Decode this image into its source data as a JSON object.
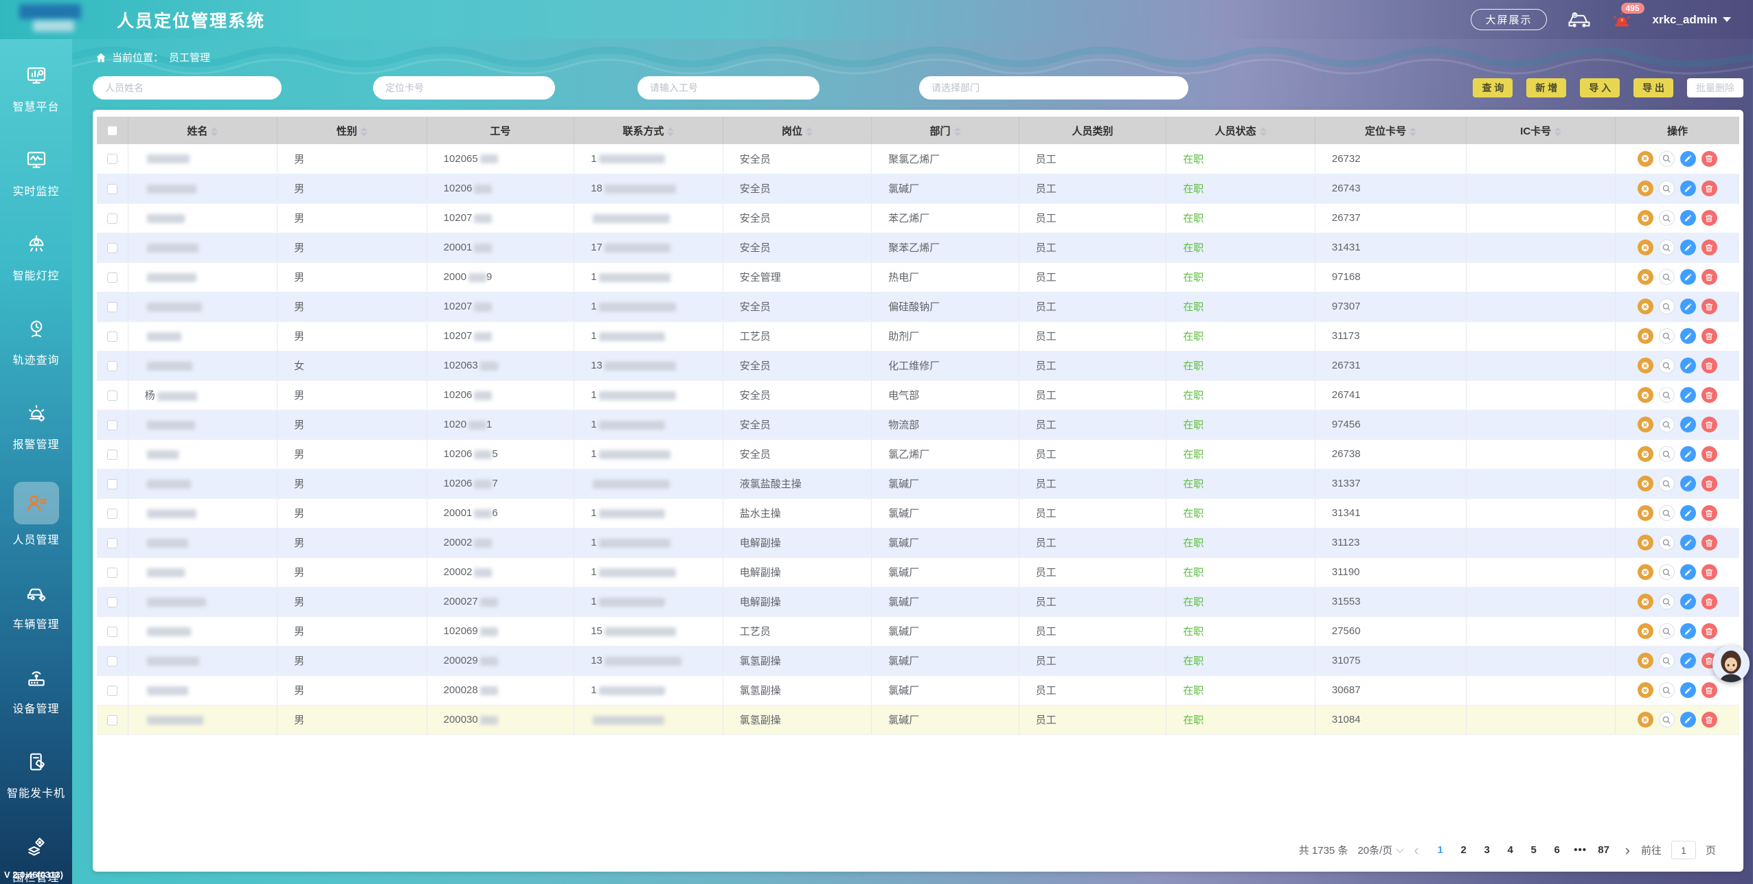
{
  "app": {
    "title": "人员定位管理系统",
    "version": "V 2.0.46(0313)",
    "header": {
      "big_screen_btn": "大屏展示",
      "alarm_badge": "495",
      "username": "xrkc_admin"
    }
  },
  "sidebar": {
    "items": [
      {
        "label": "智慧平台",
        "icon": "dashboard",
        "active": false
      },
      {
        "label": "实时监控",
        "icon": "monitor",
        "active": false
      },
      {
        "label": "智能灯控",
        "icon": "lamp",
        "active": false
      },
      {
        "label": "轨迹查询",
        "icon": "track",
        "active": false
      },
      {
        "label": "报警管理",
        "icon": "alarm",
        "active": false
      },
      {
        "label": "人员管理",
        "icon": "person",
        "active": true
      },
      {
        "label": "车辆管理",
        "icon": "vehicle",
        "active": false
      },
      {
        "label": "设备管理",
        "icon": "device",
        "active": false
      },
      {
        "label": "智能发卡机",
        "icon": "cardmachine",
        "active": false
      },
      {
        "label": "围栏管理",
        "icon": "fence",
        "active": false
      }
    ]
  },
  "breadcrumb": {
    "prefix": "当前位置：",
    "current": "员工管理"
  },
  "filters": {
    "name_placeholder": "人员姓名",
    "card_placeholder": "定位卡号",
    "jobno_placeholder": "请输入工号",
    "dept_placeholder": "请选择部门"
  },
  "toolbar": {
    "query": "查 询",
    "add": "新 增",
    "import": "导 入",
    "export": "导 出",
    "batch_delete": "批量删除"
  },
  "table": {
    "columns": [
      {
        "label": "姓名",
        "sortable": true
      },
      {
        "label": "性别",
        "sortable": true
      },
      {
        "label": "工号",
        "sortable": false
      },
      {
        "label": "联系方式",
        "sortable": true
      },
      {
        "label": "岗位",
        "sortable": true
      },
      {
        "label": "部门",
        "sortable": true
      },
      {
        "label": "人员类别",
        "sortable": false
      },
      {
        "label": "人员状态",
        "sortable": true
      },
      {
        "label": "定位卡号",
        "sortable": true
      },
      {
        "label": "IC卡号",
        "sortable": true
      },
      {
        "label": "操作",
        "sortable": false
      }
    ],
    "row_actions": [
      "unbind",
      "view",
      "edit",
      "delete"
    ],
    "rows": [
      {
        "name_prefix": "",
        "gender": "男",
        "job_prefix": "102065",
        "job_suffix": "",
        "phone_prefix": "1",
        "position": "安全员",
        "department": "聚氯乙烯厂",
        "category": "员工",
        "status": "在职",
        "card_no": "26732",
        "ic_no": "",
        "highlighted": false
      },
      {
        "name_prefix": "",
        "gender": "男",
        "job_prefix": "10206",
        "job_suffix": "",
        "phone_prefix": "18",
        "position": "安全员",
        "department": "氯碱厂",
        "category": "员工",
        "status": "在职",
        "card_no": "26743",
        "ic_no": "",
        "highlighted": false
      },
      {
        "name_prefix": "",
        "gender": "男",
        "job_prefix": "10207",
        "job_suffix": "",
        "phone_prefix": "",
        "position": "安全员",
        "department": "苯乙烯厂",
        "category": "员工",
        "status": "在职",
        "card_no": "26737",
        "ic_no": "",
        "highlighted": false
      },
      {
        "name_prefix": "",
        "gender": "男",
        "job_prefix": "20001",
        "job_suffix": "",
        "phone_prefix": "17",
        "position": "安全员",
        "department": "聚苯乙烯厂",
        "category": "员工",
        "status": "在职",
        "card_no": "31431",
        "ic_no": "",
        "highlighted": false
      },
      {
        "name_prefix": "",
        "gender": "男",
        "job_prefix": "2000",
        "job_suffix": "9",
        "phone_prefix": "1",
        "position": "安全管理",
        "department": "热电厂",
        "category": "员工",
        "status": "在职",
        "card_no": "97168",
        "ic_no": "",
        "highlighted": false
      },
      {
        "name_prefix": "",
        "gender": "男",
        "job_prefix": "10207",
        "job_suffix": "",
        "phone_prefix": "1",
        "position": "安全员",
        "department": "偏硅酸钠厂",
        "category": "员工",
        "status": "在职",
        "card_no": "97307",
        "ic_no": "",
        "highlighted": false
      },
      {
        "name_prefix": "",
        "gender": "男",
        "job_prefix": "10207",
        "job_suffix": "",
        "phone_prefix": "1",
        "position": "工艺员",
        "department": "助剂厂",
        "category": "员工",
        "status": "在职",
        "card_no": "31173",
        "ic_no": "",
        "highlighted": false
      },
      {
        "name_prefix": "",
        "gender": "女",
        "job_prefix": "102063",
        "job_suffix": "",
        "phone_prefix": "13",
        "position": "安全员",
        "department": "化工维修厂",
        "category": "员工",
        "status": "在职",
        "card_no": "26731",
        "ic_no": "",
        "highlighted": false
      },
      {
        "name_prefix": "杨",
        "gender": "男",
        "job_prefix": "10206",
        "job_suffix": "",
        "phone_prefix": "1",
        "position": "安全员",
        "department": "电气部",
        "category": "员工",
        "status": "在职",
        "card_no": "26741",
        "ic_no": "",
        "highlighted": false
      },
      {
        "name_prefix": "",
        "gender": "男",
        "job_prefix": "1020",
        "job_suffix": "1",
        "phone_prefix": "1",
        "position": "安全员",
        "department": "物流部",
        "category": "员工",
        "status": "在职",
        "card_no": "97456",
        "ic_no": "",
        "highlighted": false
      },
      {
        "name_prefix": "",
        "gender": "男",
        "job_prefix": "10206",
        "job_suffix": "5",
        "phone_prefix": "1",
        "position": "安全员",
        "department": "氯乙烯厂",
        "category": "员工",
        "status": "在职",
        "card_no": "26738",
        "ic_no": "",
        "highlighted": false
      },
      {
        "name_prefix": "",
        "gender": "男",
        "job_prefix": "10206",
        "job_suffix": "7",
        "phone_prefix": "",
        "position": "液氯盐酸主操",
        "department": "氯碱厂",
        "category": "员工",
        "status": "在职",
        "card_no": "31337",
        "ic_no": "",
        "highlighted": false
      },
      {
        "name_prefix": "",
        "gender": "男",
        "job_prefix": "20001",
        "job_suffix": "6",
        "phone_prefix": "1",
        "position": "盐水主操",
        "department": "氯碱厂",
        "category": "员工",
        "status": "在职",
        "card_no": "31341",
        "ic_no": "",
        "highlighted": false
      },
      {
        "name_prefix": "",
        "gender": "男",
        "job_prefix": "20002",
        "job_suffix": "",
        "phone_prefix": "1",
        "position": "电解副操",
        "department": "氯碱厂",
        "category": "员工",
        "status": "在职",
        "card_no": "31123",
        "ic_no": "",
        "highlighted": false
      },
      {
        "name_prefix": "",
        "gender": "男",
        "job_prefix": "20002",
        "job_suffix": "",
        "phone_prefix": "1",
        "position": "电解副操",
        "department": "氯碱厂",
        "category": "员工",
        "status": "在职",
        "card_no": "31190",
        "ic_no": "",
        "highlighted": false
      },
      {
        "name_prefix": "",
        "gender": "男",
        "job_prefix": "200027",
        "job_suffix": "",
        "phone_prefix": "1",
        "position": "电解副操",
        "department": "氯碱厂",
        "category": "员工",
        "status": "在职",
        "card_no": "31553",
        "ic_no": "",
        "highlighted": false
      },
      {
        "name_prefix": "",
        "gender": "男",
        "job_prefix": "102069",
        "job_suffix": "",
        "phone_prefix": "15",
        "position": "工艺员",
        "department": "氯碱厂",
        "category": "员工",
        "status": "在职",
        "card_no": "27560",
        "ic_no": "",
        "highlighted": false
      },
      {
        "name_prefix": "",
        "gender": "男",
        "job_prefix": "200029",
        "job_suffix": "",
        "phone_prefix": "13",
        "position": "氯氢副操",
        "department": "氯碱厂",
        "category": "员工",
        "status": "在职",
        "card_no": "31075",
        "ic_no": "",
        "highlighted": false
      },
      {
        "name_prefix": "",
        "gender": "男",
        "job_prefix": "200028",
        "job_suffix": "",
        "phone_prefix": "1",
        "position": "氯氢副操",
        "department": "氯碱厂",
        "category": "员工",
        "status": "在职",
        "card_no": "30687",
        "ic_no": "",
        "highlighted": false
      },
      {
        "name_prefix": "",
        "gender": "男",
        "job_prefix": "200030",
        "job_suffix": "",
        "phone_prefix": "",
        "position": "氯氢副操",
        "department": "氯碱厂",
        "category": "员工",
        "status": "在职",
        "card_no": "31084",
        "ic_no": "",
        "highlighted": true
      }
    ]
  },
  "pagination": {
    "total": "共 1735 条",
    "page_size": "20条/页",
    "pages": [
      "1",
      "2",
      "3",
      "4",
      "5",
      "6",
      "•••",
      "87"
    ],
    "active_page": "1",
    "goto_label": "前往",
    "goto_value": "1",
    "page_unit": "页"
  }
}
